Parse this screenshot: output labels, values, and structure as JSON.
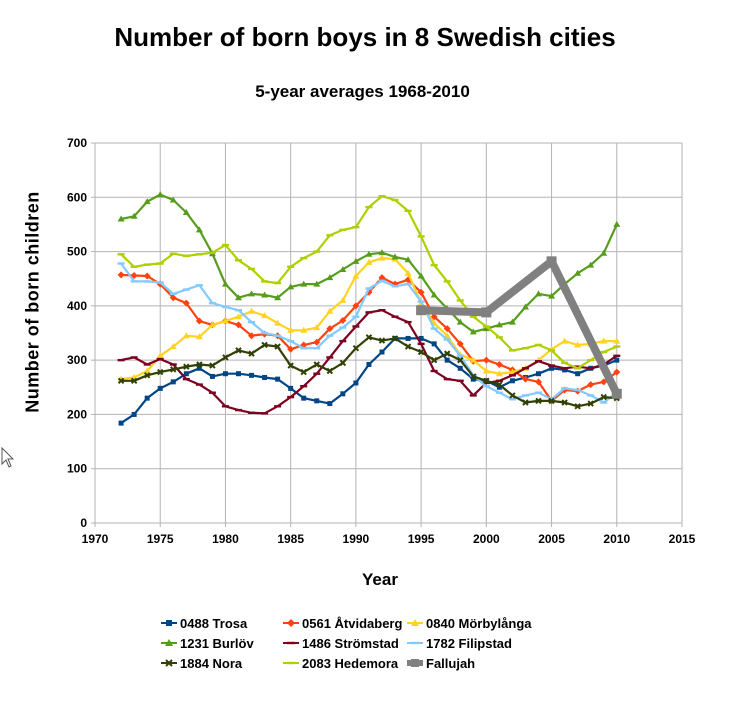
{
  "chart_data": {
    "type": "line",
    "title": "Number of born boys in 8 Swedish cities",
    "subtitle": "5-year averages 1968-2010",
    "xlabel": "Year",
    "ylabel": "Number of born children",
    "xlim": [
      1970,
      2015
    ],
    "ylim": [
      0,
      700
    ],
    "xticks": [
      1970,
      1975,
      1980,
      1985,
      1990,
      1995,
      2000,
      2005,
      2010,
      2015
    ],
    "yticks": [
      0,
      100,
      200,
      300,
      400,
      500,
      600,
      700
    ],
    "grid": true,
    "legend_position": "bottom",
    "series": [
      {
        "name": "0488 Trosa",
        "color": "#004586",
        "marker": "square",
        "x": [
          1972,
          1973,
          1974,
          1975,
          1976,
          1977,
          1978,
          1979,
          1980,
          1981,
          1982,
          1983,
          1984,
          1985,
          1986,
          1987,
          1988,
          1989,
          1990,
          1991,
          1992,
          1993,
          1994,
          1995,
          1996,
          1997,
          1998,
          1999,
          2000,
          2001,
          2002,
          2003,
          2004,
          2005,
          2006,
          2007,
          2008,
          2009,
          2010
        ],
        "y": [
          184,
          200,
          230,
          248,
          260,
          275,
          285,
          270,
          275,
          275,
          272,
          268,
          265,
          248,
          230,
          225,
          220,
          238,
          258,
          292,
          315,
          340,
          340,
          340,
          330,
          300,
          285,
          265,
          262,
          250,
          262,
          268,
          275,
          285,
          282,
          275,
          285,
          290,
          300
        ]
      },
      {
        "name": "0561 Åtvidaberg",
        "color": "#ff420e",
        "marker": "diamond",
        "x": [
          1972,
          1973,
          1974,
          1975,
          1976,
          1977,
          1978,
          1979,
          1980,
          1981,
          1982,
          1983,
          1984,
          1985,
          1986,
          1987,
          1988,
          1989,
          1990,
          1991,
          1992,
          1993,
          1994,
          1995,
          1996,
          1997,
          1998,
          1999,
          2000,
          2001,
          2002,
          2003,
          2004,
          2005,
          2006,
          2007,
          2008,
          2009,
          2010
        ],
        "y": [
          457,
          456,
          455,
          440,
          415,
          405,
          372,
          365,
          372,
          365,
          345,
          348,
          345,
          320,
          328,
          333,
          358,
          373,
          400,
          425,
          452,
          440,
          448,
          425,
          380,
          358,
          330,
          298,
          300,
          292,
          282,
          265,
          260,
          225,
          245,
          243,
          255,
          260,
          278
        ]
      },
      {
        "name": "0840 Mörbylånga",
        "color": "#ffd320",
        "marker": "triangle",
        "x": [
          1972,
          1973,
          1974,
          1975,
          1976,
          1977,
          1978,
          1979,
          1980,
          1981,
          1982,
          1983,
          1984,
          1985,
          1986,
          1987,
          1988,
          1989,
          1990,
          1991,
          1992,
          1993,
          1994,
          1995,
          1996,
          1997,
          1998,
          1999,
          2000,
          2001,
          2002,
          2003,
          2004,
          2005,
          2006,
          2007,
          2008,
          2009,
          2010
        ],
        "y": [
          265,
          268,
          280,
          308,
          325,
          345,
          343,
          365,
          372,
          380,
          390,
          382,
          368,
          355,
          355,
          360,
          390,
          410,
          455,
          480,
          488,
          486,
          460,
          405,
          368,
          345,
          310,
          300,
          280,
          275,
          278,
          285,
          300,
          320,
          335,
          328,
          330,
          335,
          335
        ]
      },
      {
        "name": "1231 Burlöv",
        "color": "#579d1c",
        "marker": "triangle",
        "x": [
          1972,
          1973,
          1974,
          1975,
          1976,
          1977,
          1978,
          1979,
          1980,
          1981,
          1982,
          1983,
          1984,
          1985,
          1986,
          1987,
          1988,
          1989,
          1990,
          1991,
          1992,
          1993,
          1994,
          1995,
          1996,
          1997,
          1998,
          1999,
          2000,
          2001,
          2002,
          2003,
          2004,
          2005,
          2006,
          2007,
          2008,
          2009,
          2010
        ],
        "y": [
          560,
          565,
          592,
          605,
          595,
          572,
          540,
          496,
          440,
          415,
          422,
          420,
          415,
          435,
          440,
          440,
          452,
          467,
          482,
          495,
          498,
          490,
          485,
          455,
          420,
          395,
          370,
          352,
          358,
          365,
          370,
          398,
          422,
          418,
          440,
          460,
          475,
          497,
          550
        ]
      },
      {
        "name": "1486 Strömstad",
        "color": "#7e0021",
        "marker": "dash",
        "x": [
          1972,
          1973,
          1974,
          1975,
          1976,
          1977,
          1978,
          1979,
          1980,
          1981,
          1982,
          1983,
          1984,
          1985,
          1986,
          1987,
          1988,
          1989,
          1990,
          1991,
          1992,
          1993,
          1994,
          1995,
          1996,
          1997,
          1998,
          1999,
          2000,
          2001,
          2002,
          2003,
          2004,
          2005,
          2006,
          2007,
          2008,
          2009,
          2010
        ],
        "y": [
          300,
          305,
          292,
          302,
          292,
          265,
          255,
          240,
          215,
          208,
          203,
          202,
          215,
          232,
          252,
          275,
          305,
          335,
          362,
          388,
          392,
          380,
          370,
          330,
          280,
          265,
          262,
          235,
          258,
          262,
          272,
          285,
          298,
          290,
          285,
          288,
          285,
          292,
          308
        ]
      },
      {
        "name": "1782 Filipstad",
        "color": "#83caff",
        "marker": "dash",
        "x": [
          1972,
          1973,
          1974,
          1975,
          1976,
          1977,
          1978,
          1979,
          1980,
          1981,
          1982,
          1983,
          1984,
          1985,
          1986,
          1987,
          1988,
          1989,
          1990,
          1991,
          1992,
          1993,
          1994,
          1995,
          1996,
          1997,
          1998,
          1999,
          2000,
          2001,
          2002,
          2003,
          2004,
          2005,
          2006,
          2007,
          2008,
          2009,
          2010
        ],
        "y": [
          478,
          445,
          445,
          443,
          422,
          430,
          438,
          405,
          398,
          392,
          370,
          350,
          345,
          335,
          322,
          322,
          345,
          360,
          380,
          432,
          446,
          436,
          440,
          408,
          358,
          338,
          308,
          272,
          252,
          240,
          228,
          235,
          240,
          228,
          248,
          245,
          235,
          222,
          240
        ]
      },
      {
        "name": "1884 Nora",
        "color": "#314004",
        "marker": "x",
        "x": [
          1972,
          1973,
          1974,
          1975,
          1976,
          1977,
          1978,
          1979,
          1980,
          1981,
          1982,
          1983,
          1984,
          1985,
          1986,
          1987,
          1988,
          1989,
          1990,
          1991,
          1992,
          1993,
          1994,
          1995,
          1996,
          1997,
          1998,
          1999,
          2000,
          2001,
          2002,
          2003,
          2004,
          2005,
          2006,
          2007,
          2008,
          2009,
          2010
        ],
        "y": [
          262,
          262,
          272,
          278,
          283,
          288,
          292,
          290,
          305,
          318,
          312,
          328,
          325,
          290,
          278,
          292,
          280,
          295,
          322,
          342,
          336,
          340,
          325,
          315,
          300,
          312,
          300,
          270,
          262,
          255,
          235,
          222,
          225,
          225,
          222,
          215,
          220,
          232,
          230
        ]
      },
      {
        "name": "2083 Hedemora",
        "color": "#aecf00",
        "marker": "dash",
        "x": [
          1972,
          1973,
          1974,
          1975,
          1976,
          1977,
          1978,
          1979,
          1980,
          1981,
          1982,
          1983,
          1984,
          1985,
          1986,
          1987,
          1988,
          1989,
          1990,
          1991,
          1992,
          1993,
          1994,
          1995,
          1996,
          1997,
          1998,
          1999,
          2000,
          2001,
          2002,
          2003,
          2004,
          2005,
          2006,
          2007,
          2008,
          2009,
          2010
        ],
        "y": [
          495,
          472,
          476,
          478,
          496,
          492,
          495,
          498,
          512,
          484,
          468,
          445,
          442,
          472,
          488,
          500,
          530,
          540,
          545,
          582,
          602,
          595,
          575,
          528,
          475,
          445,
          410,
          380,
          362,
          342,
          318,
          322,
          328,
          318,
          295,
          285,
          300,
          315,
          325
        ]
      },
      {
        "name": "Fallujah",
        "color": "#808080",
        "marker": "square",
        "thick": true,
        "x": [
          1995,
          2000,
          2005,
          2010
        ],
        "y": [
          392,
          388,
          482,
          238
        ]
      }
    ]
  }
}
